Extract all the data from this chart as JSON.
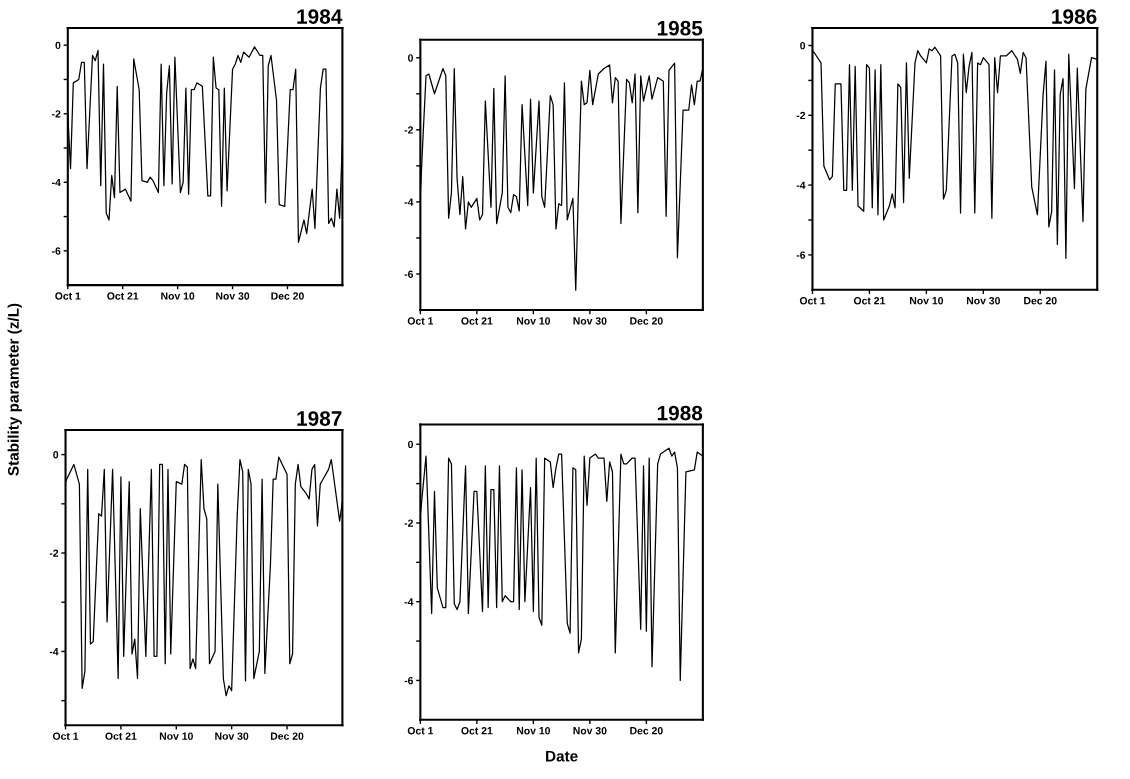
{
  "chart_data": [
    {
      "type": "line",
      "title": "1984",
      "color": "#000000",
      "xlim": [
        "1984-10-01",
        "1985-01-09"
      ],
      "xticks": [
        {
          "value": "1984-10-01",
          "label": "Oct 1"
        },
        {
          "value": "1984-10-21",
          "label": "Oct 21"
        },
        {
          "value": "1984-11-10",
          "label": "Nov 10"
        },
        {
          "value": "1984-11-30",
          "label": "Nov 30"
        },
        {
          "value": "1984-12-20",
          "label": "Dec 20"
        }
      ],
      "ylim": [
        -7,
        0.5
      ],
      "yticks": [
        0,
        {
          "value": -1,
          "label": null
        },
        -2,
        {
          "value": -3,
          "label": null
        },
        -4,
        {
          "value": -5,
          "label": null
        },
        -6
      ],
      "x": [
        "1984-10-01",
        "1984-10-02",
        "1984-10-03",
        "1984-10-05",
        "1984-10-06",
        "1984-10-07",
        "1984-10-08",
        "1984-10-10",
        "1984-10-11",
        "1984-10-12",
        "1984-10-13",
        "1984-10-14",
        "1984-10-15",
        "1984-10-16",
        "1984-10-17",
        "1984-10-18",
        "1984-10-19",
        "1984-10-20",
        "1984-10-22",
        "1984-10-24",
        "1984-10-25",
        "1984-10-27",
        "1984-10-28",
        "1984-10-30",
        "1984-10-31",
        "1984-11-01",
        "1984-11-03",
        "1984-11-04",
        "1984-11-05",
        "1984-11-06",
        "1984-11-07",
        "1984-11-08",
        "1984-11-09",
        "1984-11-11",
        "1984-11-12",
        "1984-11-13",
        "1984-11-14",
        "1984-11-15",
        "1984-11-16",
        "1984-11-17",
        "1984-11-19",
        "1984-11-21",
        "1984-11-22",
        "1984-11-23",
        "1984-11-24",
        "1984-11-25",
        "1984-11-26",
        "1984-11-27",
        "1984-11-28",
        "1984-11-30",
        "1984-12-01",
        "1984-12-02",
        "1984-12-03",
        "1984-12-04",
        "1984-12-06",
        "1984-12-08",
        "1984-12-10",
        "1984-12-11",
        "1984-12-12",
        "1984-12-13",
        "1984-12-14",
        "1984-12-16",
        "1984-12-17",
        "1984-12-19",
        "1984-12-21",
        "1984-12-22",
        "1984-12-23",
        "1984-12-24",
        "1984-12-26",
        "1984-12-27",
        "1984-12-29",
        "1984-12-30",
        "1985-01-01",
        "1985-01-02",
        "1985-01-03",
        "1985-01-04",
        "1985-01-05",
        "1985-01-06",
        "1985-01-07",
        "1985-01-08",
        "1985-01-09"
      ],
      "values": [
        -2.0,
        -3.6,
        -1.1,
        -1.0,
        -0.5,
        -0.5,
        -3.6,
        -0.3,
        -0.45,
        -0.15,
        -4.1,
        -0.55,
        -4.9,
        -5.1,
        -3.8,
        -4.45,
        -1.2,
        -4.3,
        -4.2,
        -4.55,
        -0.4,
        -1.3,
        -3.95,
        -4.0,
        -3.85,
        -3.95,
        -4.3,
        -0.55,
        -4.1,
        -1.4,
        -0.6,
        -4.05,
        -0.35,
        -4.3,
        -4.0,
        -1.25,
        -4.35,
        -1.3,
        -1.3,
        -1.1,
        -1.2,
        -4.4,
        -4.4,
        -0.35,
        -1.25,
        -1.3,
        -4.7,
        -1.25,
        -4.25,
        -0.7,
        -0.55,
        -0.3,
        -0.5,
        -0.2,
        -0.35,
        -0.05,
        -0.3,
        -0.3,
        -4.6,
        -0.6,
        -0.3,
        -1.6,
        -4.65,
        -4.7,
        -1.3,
        -1.3,
        -0.7,
        -5.75,
        -5.1,
        -5.5,
        -4.2,
        -5.35,
        -1.25,
        -0.7,
        -0.7,
        -5.2,
        -5.05,
        -5.3,
        -4.2,
        -5.05,
        -2.8
      ]
    },
    {
      "type": "line",
      "title": "1985",
      "color": "#000000",
      "xlim": [
        "1985-10-01",
        "1986-01-09"
      ],
      "xticks": [
        {
          "value": "1985-10-01",
          "label": "Oct 1"
        },
        {
          "value": "1985-10-21",
          "label": "Oct 21"
        },
        {
          "value": "1985-11-10",
          "label": "Nov 10"
        },
        {
          "value": "1985-11-30",
          "label": "Nov 30"
        },
        {
          "value": "1985-12-20",
          "label": "Dec 20"
        }
      ],
      "ylim": [
        -7,
        0.5
      ],
      "yticks": [
        0,
        {
          "value": -1,
          "label": null
        },
        -2,
        {
          "value": -3,
          "label": null
        },
        -4,
        {
          "value": -5,
          "label": null
        },
        -6
      ],
      "x": [
        "1985-10-01",
        "1985-10-02",
        "1985-10-03",
        "1985-10-04",
        "1985-10-06",
        "1985-10-09",
        "1985-10-10",
        "1985-10-11",
        "1985-10-12",
        "1985-10-13",
        "1985-10-14",
        "1985-10-15",
        "1985-10-16",
        "1985-10-17",
        "1985-10-18",
        "1985-10-19",
        "1985-10-21",
        "1985-10-22",
        "1985-10-23",
        "1985-10-24",
        "1985-10-26",
        "1985-10-27",
        "1985-10-28",
        "1985-10-30",
        "1985-10-31",
        "1985-11-01",
        "1985-11-02",
        "1985-11-03",
        "1985-11-04",
        "1985-11-05",
        "1985-11-06",
        "1985-11-08",
        "1985-11-09",
        "1985-11-10",
        "1985-11-12",
        "1985-11-13",
        "1985-11-14",
        "1985-11-16",
        "1985-11-17",
        "1985-11-18",
        "1985-11-19",
        "1985-11-20",
        "1985-11-21",
        "1985-11-22",
        "1985-11-24",
        "1985-11-25",
        "1985-11-27",
        "1985-11-28",
        "1985-11-29",
        "1985-11-30",
        "1985-12-01",
        "1985-12-03",
        "1985-12-05",
        "1985-12-07",
        "1985-12-08",
        "1985-12-09",
        "1985-12-10",
        "1985-12-11",
        "1985-12-13",
        "1985-12-14",
        "1985-12-15",
        "1985-12-16",
        "1985-12-17",
        "1985-12-18",
        "1985-12-19",
        "1985-12-21",
        "1985-12-22",
        "1985-12-24",
        "1985-12-26",
        "1985-12-27",
        "1985-12-28",
        "1985-12-30",
        "1985-12-31",
        "1986-01-02",
        "1986-01-04",
        "1986-01-05",
        "1986-01-06",
        "1986-01-07",
        "1986-01-08",
        "1986-01-09"
      ],
      "values": [
        -3.8,
        -2.1,
        -0.5,
        -0.45,
        -1.0,
        -0.3,
        -0.5,
        -4.45,
        -3.75,
        -0.3,
        -3.35,
        -4.35,
        -3.3,
        -4.75,
        -4.0,
        -4.15,
        -3.9,
        -4.5,
        -4.35,
        -1.2,
        -4.15,
        -0.85,
        -4.6,
        -3.75,
        -0.5,
        -4.15,
        -4.3,
        -3.8,
        -3.85,
        -4.25,
        -1.3,
        -4.1,
        -1.15,
        -3.75,
        -1.2,
        -3.85,
        -4.15,
        -1.05,
        -1.3,
        -4.75,
        -4.05,
        -4.1,
        -0.7,
        -4.5,
        -3.9,
        -6.45,
        -0.65,
        -1.3,
        -1.25,
        -0.35,
        -1.3,
        -0.45,
        -0.3,
        -0.2,
        -1.25,
        -0.55,
        -0.65,
        -4.6,
        -0.6,
        -0.7,
        -1.25,
        -0.45,
        -4.3,
        -0.5,
        -1.2,
        -0.5,
        -1.15,
        -0.55,
        -0.65,
        -4.4,
        -0.35,
        -0.15,
        -5.55,
        -1.45,
        -1.45,
        -0.75,
        -1.3,
        -0.65,
        -0.65,
        -0.3
      ]
    },
    {
      "type": "line",
      "title": "1986",
      "color": "#000000",
      "xlim": [
        "1986-10-01",
        "1987-01-09"
      ],
      "xticks": [
        {
          "value": "1986-10-01",
          "label": "Oct 1"
        },
        {
          "value": "1986-10-21",
          "label": "Oct 21"
        },
        {
          "value": "1986-11-10",
          "label": "Nov 10"
        },
        {
          "value": "1986-11-30",
          "label": "Nov 30"
        },
        {
          "value": "1986-12-20",
          "label": "Dec 20"
        }
      ],
      "ylim": [
        -7,
        0.5
      ],
      "yticks": [
        0,
        {
          "value": -1,
          "label": null
        },
        -2,
        {
          "value": -3,
          "label": null
        },
        -4,
        {
          "value": -5,
          "label": null
        },
        -6
      ],
      "x": [
        "1986-10-01",
        "1986-10-02",
        "1986-10-04",
        "1986-10-05",
        "1986-10-07",
        "1986-10-08",
        "1986-10-09",
        "1986-10-11",
        "1986-10-12",
        "1986-10-13",
        "1986-10-14",
        "1986-10-15",
        "1986-10-16",
        "1986-10-17",
        "1986-10-19",
        "1986-10-20",
        "1986-10-21",
        "1986-10-22",
        "1986-10-23",
        "1986-10-24",
        "1986-10-25",
        "1986-10-26",
        "1986-10-28",
        "1986-10-29",
        "1986-10-30",
        "1986-10-31",
        "1986-11-01",
        "1986-11-02",
        "1986-11-03",
        "1986-11-04",
        "1986-11-06",
        "1986-11-07",
        "1986-11-08",
        "1986-11-10",
        "1986-11-11",
        "1986-11-12",
        "1986-11-13",
        "1986-11-15",
        "1986-11-16",
        "1986-11-17",
        "1986-11-19",
        "1986-11-20",
        "1986-11-21",
        "1986-11-22",
        "1986-11-23",
        "1986-11-24",
        "1986-11-25",
        "1986-11-26",
        "1986-11-27",
        "1986-11-28",
        "1986-11-29",
        "1986-11-30",
        "1986-12-02",
        "1986-12-03",
        "1986-12-04",
        "1986-12-05",
        "1986-12-06",
        "1986-12-08",
        "1986-12-10",
        "1986-12-12",
        "1986-12-13",
        "1986-12-14",
        "1986-12-15",
        "1986-12-17",
        "1986-12-19",
        "1986-12-21",
        "1986-12-22",
        "1986-12-23",
        "1986-12-24",
        "1986-12-25",
        "1986-12-26",
        "1986-12-27",
        "1986-12-28",
        "1986-12-29",
        "1986-12-30",
        "1987-01-01",
        "1987-01-02",
        "1987-01-04",
        "1987-01-05",
        "1987-01-07",
        "1987-01-09"
      ],
      "values": [
        -0.15,
        -0.25,
        -0.5,
        -3.45,
        -3.85,
        -3.75,
        -1.1,
        -1.1,
        -4.15,
        -4.15,
        -0.55,
        -4.15,
        -0.6,
        -4.6,
        -4.75,
        -0.55,
        -0.65,
        -4.65,
        -0.7,
        -4.85,
        -0.55,
        -5.0,
        -4.6,
        -4.25,
        -4.65,
        -1.1,
        -1.2,
        -4.5,
        -0.5,
        -3.8,
        -0.5,
        -0.15,
        -0.3,
        -0.5,
        -0.1,
        -0.15,
        -0.05,
        -0.3,
        -4.4,
        -4.15,
        -0.3,
        -0.25,
        -0.5,
        -4.8,
        -0.25,
        -1.35,
        -0.6,
        -0.2,
        -4.8,
        -0.5,
        -0.55,
        -0.35,
        -0.55,
        -4.95,
        -0.35,
        -1.35,
        -0.3,
        -0.3,
        -0.15,
        -0.4,
        -0.8,
        -0.2,
        -0.35,
        -4.05,
        -4.85,
        -1.4,
        -0.45,
        -5.2,
        -4.75,
        -0.7,
        -5.7,
        -1.4,
        -0.95,
        -6.1,
        -0.25,
        -4.1,
        -0.65,
        -5.05,
        -1.25,
        -0.35,
        -0.4
      ]
    },
    {
      "type": "line",
      "title": "1987",
      "ylabel": "Stability parameter (z/L)",
      "color": "#000000",
      "xlim": [
        "1987-10-01",
        "1988-01-09"
      ],
      "xticks": [
        {
          "value": "1987-10-01",
          "label": "Oct 1"
        },
        {
          "value": "1987-10-21",
          "label": "Oct 21"
        },
        {
          "value": "1987-11-10",
          "label": "Nov 10"
        },
        {
          "value": "1987-11-30",
          "label": "Nov 30"
        },
        {
          "value": "1987-12-20",
          "label": "Dec 20"
        }
      ],
      "ylim": [
        -5.5,
        0.5
      ],
      "yticks": [
        0,
        {
          "value": -1,
          "label": null
        },
        -2,
        {
          "value": -3,
          "label": null
        },
        -4,
        {
          "value": -5,
          "label": null
        }
      ],
      "x": [
        "1987-10-01",
        "1987-10-04",
        "1987-10-06",
        "1987-10-07",
        "1987-10-08",
        "1987-10-09",
        "1987-10-10",
        "1987-10-11",
        "1987-10-13",
        "1987-10-14",
        "1987-10-15",
        "1987-10-16",
        "1987-10-18",
        "1987-10-20",
        "1987-10-21",
        "1987-10-22",
        "1987-10-24",
        "1987-10-25",
        "1987-10-26",
        "1987-10-27",
        "1987-10-28",
        "1987-10-30",
        "1987-11-01",
        "1987-11-02",
        "1987-11-03",
        "1987-11-04",
        "1987-11-05",
        "1987-11-06",
        "1987-11-07",
        "1987-11-08",
        "1987-11-10",
        "1987-11-12",
        "1987-11-13",
        "1987-11-14",
        "1987-11-15",
        "1987-11-16",
        "1987-11-17",
        "1987-11-19",
        "1987-11-20",
        "1987-11-21",
        "1987-11-22",
        "1987-11-24",
        "1987-11-25",
        "1987-11-27",
        "1987-11-28",
        "1987-11-29",
        "1987-11-30",
        "1987-12-02",
        "1987-12-03",
        "1987-12-04",
        "1987-12-05",
        "1987-12-06",
        "1987-12-07",
        "1987-12-08",
        "1987-12-10",
        "1987-12-11",
        "1987-12-12",
        "1987-12-14",
        "1987-12-15",
        "1987-12-16",
        "1987-12-17",
        "1987-12-20",
        "1987-12-21",
        "1987-12-22",
        "1987-12-23",
        "1987-12-24",
        "1987-12-25",
        "1987-12-27",
        "1987-12-28",
        "1987-12-29",
        "1987-12-30",
        "1987-12-31",
        "1988-01-01",
        "1988-01-02",
        "1988-01-04",
        "1988-01-05",
        "1988-01-08",
        "1988-01-09"
      ],
      "values": [
        -0.55,
        -0.2,
        -0.6,
        -4.75,
        -4.4,
        -0.3,
        -3.85,
        -3.8,
        -1.2,
        -1.25,
        -0.3,
        -3.4,
        -0.3,
        -4.55,
        -0.45,
        -4.1,
        -0.55,
        -4.05,
        -3.75,
        -4.55,
        -1.1,
        -4.1,
        -0.3,
        -4.1,
        -4.1,
        -0.2,
        -0.2,
        -4.25,
        -0.3,
        -4.05,
        -0.55,
        -0.6,
        -0.2,
        -0.25,
        -4.35,
        -4.15,
        -4.35,
        -0.1,
        -1.1,
        -1.3,
        -4.25,
        -4.0,
        -0.6,
        -4.55,
        -4.9,
        -4.7,
        -4.8,
        -1.25,
        -0.1,
        -0.35,
        -4.6,
        -0.3,
        -0.6,
        -4.55,
        -4.0,
        -0.5,
        -4.45,
        -2.25,
        -0.5,
        -0.5,
        -0.05,
        -0.4,
        -4.25,
        -4.05,
        -0.6,
        -0.2,
        -0.65,
        -0.8,
        -0.9,
        -0.3,
        -0.2,
        -1.45,
        -0.6,
        -0.5,
        -0.3,
        -0.1,
        -1.35,
        -0.95
      ]
    },
    {
      "type": "line",
      "title": "1988",
      "xlabel": "Date",
      "color": "#000000",
      "xlim": [
        "1988-10-01",
        "1989-01-09"
      ],
      "xticks": [
        {
          "value": "1988-10-01",
          "label": "Oct 1"
        },
        {
          "value": "1988-10-21",
          "label": "Oct 21"
        },
        {
          "value": "1988-11-10",
          "label": "Nov 10"
        },
        {
          "value": "1988-11-30",
          "label": "Nov 30"
        },
        {
          "value": "1988-12-20",
          "label": "Dec 20"
        }
      ],
      "ylim": [
        -7,
        0.5
      ],
      "yticks": [
        0,
        {
          "value": -1,
          "label": null
        },
        -2,
        {
          "value": -3,
          "label": null
        },
        -4,
        {
          "value": -5,
          "label": null
        },
        -6
      ],
      "x": [
        "1988-10-01",
        "1988-10-02",
        "1988-10-03",
        "1988-10-05",
        "1988-10-06",
        "1988-10-07",
        "1988-10-09",
        "1988-10-10",
        "1988-10-11",
        "1988-10-12",
        "1988-10-13",
        "1988-10-14",
        "1988-10-15",
        "1988-10-17",
        "1988-10-18",
        "1988-10-20",
        "1988-10-21",
        "1988-10-23",
        "1988-10-24",
        "1988-10-25",
        "1988-10-26",
        "1988-10-27",
        "1988-10-28",
        "1988-10-29",
        "1988-10-30",
        "1988-10-31",
        "1988-11-02",
        "1988-11-03",
        "1988-11-04",
        "1988-11-05",
        "1988-11-06",
        "1988-11-07",
        "1988-11-09",
        "1988-11-10",
        "1988-11-11",
        "1988-11-12",
        "1988-11-13",
        "1988-11-14",
        "1988-11-16",
        "1988-11-17",
        "1988-11-18",
        "1988-11-19",
        "1988-11-20",
        "1988-11-22",
        "1988-11-23",
        "1988-11-24",
        "1988-11-25",
        "1988-11-26",
        "1988-11-27",
        "1988-11-28",
        "1988-11-29",
        "1988-11-30",
        "1988-12-02",
        "1988-12-03",
        "1988-12-05",
        "1988-12-06",
        "1988-12-07",
        "1988-12-08",
        "1988-12-09",
        "1988-12-11",
        "1988-12-12",
        "1988-12-13",
        "1988-12-15",
        "1988-12-16",
        "1988-12-18",
        "1988-12-19",
        "1988-12-20",
        "1988-12-21",
        "1988-12-22",
        "1988-12-24",
        "1988-12-25",
        "1988-12-28",
        "1988-12-29",
        "1988-12-30",
        "1988-12-31",
        "1989-01-01",
        "1989-01-03",
        "1989-01-06",
        "1989-01-07",
        "1989-01-09"
      ],
      "values": [
        -1.8,
        -1.05,
        -0.3,
        -4.3,
        -1.2,
        -3.65,
        -4.15,
        -4.15,
        -0.35,
        -0.5,
        -4.05,
        -4.2,
        -4.0,
        -0.55,
        -4.3,
        -1.2,
        -1.2,
        -4.25,
        -0.55,
        -4.15,
        -1.15,
        -1.15,
        -4.15,
        -0.55,
        -4.0,
        -3.85,
        -4.0,
        -4.0,
        -0.6,
        -4.2,
        -0.65,
        -4.0,
        -1.1,
        -4.25,
        -0.35,
        -4.4,
        -4.6,
        -0.35,
        -0.45,
        -1.1,
        -0.6,
        -0.25,
        -0.25,
        -4.55,
        -4.8,
        -0.6,
        -0.65,
        -5.3,
        -4.95,
        -0.3,
        -1.55,
        -0.35,
        -0.25,
        -0.35,
        -0.35,
        -1.45,
        -0.45,
        -0.7,
        -5.3,
        -0.25,
        -0.5,
        -0.5,
        -0.35,
        -0.35,
        -4.7,
        -0.55,
        -4.75,
        -0.35,
        -5.65,
        -0.5,
        -0.25,
        -0.1,
        -0.3,
        -0.2,
        -0.6,
        -6.0,
        -0.7,
        -0.65,
        -0.2,
        -0.3
      ]
    }
  ]
}
